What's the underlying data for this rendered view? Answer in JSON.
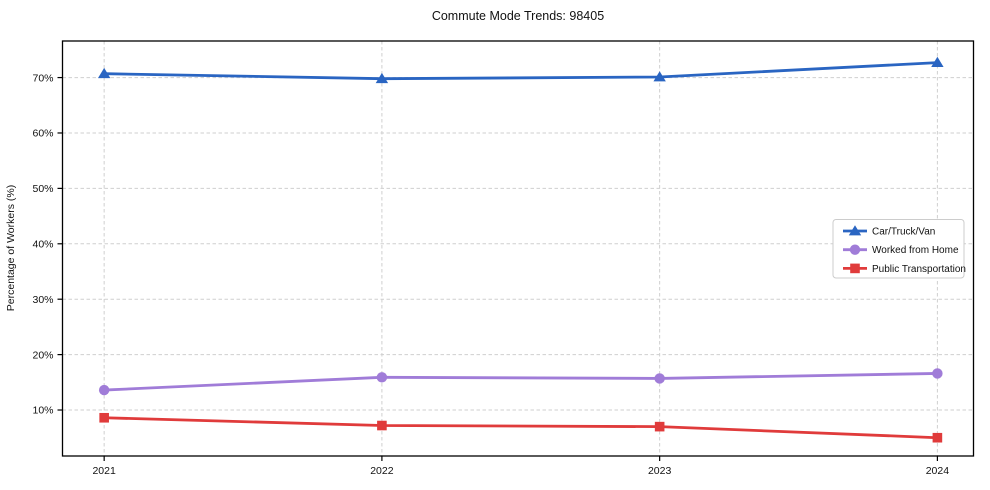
{
  "figure": {
    "title": "Commute Mode Trends: 98405",
    "y_axis_label": "Percentage of Workers (%)"
  },
  "chart_data": {
    "type": "line",
    "title": "Commute Mode Trends: 98405",
    "xlabel": "",
    "ylabel": "Percentage of Workers (%)",
    "x": [
      2021,
      2022,
      2023,
      2024
    ],
    "x_tick_labels": [
      "2021",
      "2022",
      "2023",
      "2024"
    ],
    "y_ticks": [
      10,
      20,
      30,
      40,
      50,
      60,
      70
    ],
    "y_tick_labels": [
      "10%",
      "20%",
      "30%",
      "40%",
      "50%",
      "60%",
      "70%"
    ],
    "xlim": [
      2020.85,
      2024.13
    ],
    "ylim": [
      1.7,
      76.6
    ],
    "grid": true,
    "grid_style": "dashed",
    "grid_color": "#cfcfcf",
    "legend_position": "center right",
    "series": [
      {
        "name": "Car/Truck/Van",
        "color": "#2a65c2",
        "marker": "triangle",
        "values": [
          70.7,
          69.8,
          70.1,
          72.7
        ]
      },
      {
        "name": "Worked from Home",
        "color": "#a07cd8",
        "marker": "circle",
        "values": [
          13.6,
          15.9,
          15.7,
          16.6
        ]
      },
      {
        "name": "Public Transportation",
        "color": "#e03b3b",
        "marker": "square",
        "values": [
          8.6,
          7.2,
          7.0,
          5.0
        ]
      }
    ]
  }
}
